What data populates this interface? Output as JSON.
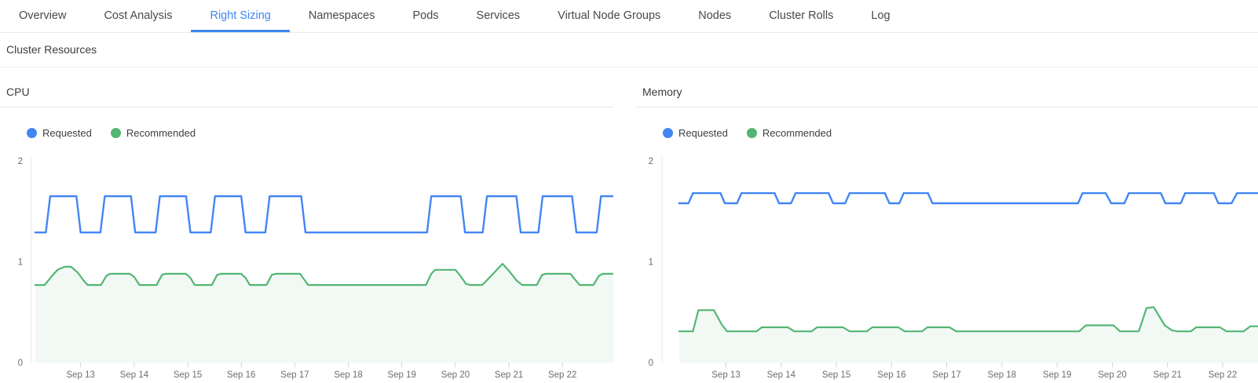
{
  "tabs": [
    {
      "label": "Overview",
      "active": false
    },
    {
      "label": "Cost Analysis",
      "active": false
    },
    {
      "label": "Right Sizing",
      "active": true
    },
    {
      "label": "Namespaces",
      "active": false
    },
    {
      "label": "Pods",
      "active": false
    },
    {
      "label": "Services",
      "active": false
    },
    {
      "label": "Virtual Node Groups",
      "active": false
    },
    {
      "label": "Nodes",
      "active": false
    },
    {
      "label": "Cluster Rolls",
      "active": false
    },
    {
      "label": "Log",
      "active": false
    }
  ],
  "colors": {
    "accent_blue": "#3b87f2",
    "requested_line": "#4286f5",
    "recommended_line": "#53b674",
    "recommended_fill": "rgba(83,182,116,0.08)",
    "axis_line": "#e4e4e4",
    "tick_mark": "#cfcfcf"
  },
  "section": {
    "title": "Cluster Resources"
  },
  "chart_data": [
    {
      "type": "line",
      "title": "CPU",
      "legend_position": "top-left",
      "grid": false,
      "ylim": [
        0,
        2
      ],
      "yticks": [
        0,
        1,
        2
      ],
      "x_domain": [
        12.08,
        22.95
      ],
      "x_ticks": [
        {
          "day": 13,
          "label": "Sep 13"
        },
        {
          "day": 14,
          "label": "Sep 14"
        },
        {
          "day": 15,
          "label": "Sep 15"
        },
        {
          "day": 16,
          "label": "Sep 16"
        },
        {
          "day": 17,
          "label": "Sep 17"
        },
        {
          "day": 18,
          "label": "Sep 18"
        },
        {
          "day": 19,
          "label": "Sep 19"
        },
        {
          "day": 20,
          "label": "Sep 20"
        },
        {
          "day": 21,
          "label": "Sep 21"
        },
        {
          "day": 22,
          "label": "Sep 22"
        }
      ],
      "series": [
        {
          "name": "Requested",
          "color": "#4286f5",
          "fill": null,
          "points": [
            [
              12.15,
              1.29
            ],
            [
              12.35,
              1.29
            ],
            [
              12.43,
              1.65
            ],
            [
              12.92,
              1.65
            ],
            [
              13.0,
              1.29
            ],
            [
              13.37,
              1.29
            ],
            [
              13.45,
              1.65
            ],
            [
              13.94,
              1.65
            ],
            [
              14.02,
              1.29
            ],
            [
              14.4,
              1.29
            ],
            [
              14.48,
              1.65
            ],
            [
              14.97,
              1.65
            ],
            [
              15.05,
              1.29
            ],
            [
              15.43,
              1.29
            ],
            [
              15.51,
              1.65
            ],
            [
              16.0,
              1.65
            ],
            [
              16.08,
              1.29
            ],
            [
              16.45,
              1.29
            ],
            [
              16.53,
              1.65
            ],
            [
              17.12,
              1.65
            ],
            [
              17.2,
              1.29
            ],
            [
              19.47,
              1.29
            ],
            [
              19.55,
              1.65
            ],
            [
              20.1,
              1.65
            ],
            [
              20.18,
              1.29
            ],
            [
              20.51,
              1.29
            ],
            [
              20.59,
              1.65
            ],
            [
              21.14,
              1.65
            ],
            [
              21.22,
              1.29
            ],
            [
              21.55,
              1.29
            ],
            [
              21.63,
              1.65
            ],
            [
              22.18,
              1.65
            ],
            [
              22.26,
              1.29
            ],
            [
              22.64,
              1.29
            ],
            [
              22.72,
              1.65
            ],
            [
              22.95,
              1.65
            ]
          ]
        },
        {
          "name": "Recommended",
          "color": "#53b674",
          "fill": "rgba(83,182,116,0.08)",
          "points": [
            [
              12.15,
              0.77
            ],
            [
              12.33,
              0.77
            ],
            [
              12.45,
              0.85
            ],
            [
              12.57,
              0.92
            ],
            [
              12.7,
              0.95
            ],
            [
              12.82,
              0.95
            ],
            [
              12.95,
              0.89
            ],
            [
              13.06,
              0.81
            ],
            [
              13.13,
              0.77
            ],
            [
              13.38,
              0.77
            ],
            [
              13.48,
              0.86
            ],
            [
              13.55,
              0.88
            ],
            [
              13.92,
              0.88
            ],
            [
              14.0,
              0.85
            ],
            [
              14.1,
              0.77
            ],
            [
              14.42,
              0.77
            ],
            [
              14.52,
              0.87
            ],
            [
              14.58,
              0.88
            ],
            [
              14.97,
              0.88
            ],
            [
              15.05,
              0.84
            ],
            [
              15.13,
              0.77
            ],
            [
              15.45,
              0.77
            ],
            [
              15.55,
              0.87
            ],
            [
              15.62,
              0.88
            ],
            [
              16.0,
              0.88
            ],
            [
              16.08,
              0.84
            ],
            [
              16.16,
              0.77
            ],
            [
              16.47,
              0.77
            ],
            [
              16.57,
              0.87
            ],
            [
              16.64,
              0.88
            ],
            [
              17.1,
              0.88
            ],
            [
              17.18,
              0.82
            ],
            [
              17.25,
              0.77
            ],
            [
              19.45,
              0.77
            ],
            [
              19.55,
              0.88
            ],
            [
              19.62,
              0.92
            ],
            [
              20.0,
              0.92
            ],
            [
              20.08,
              0.87
            ],
            [
              20.2,
              0.78
            ],
            [
              20.28,
              0.77
            ],
            [
              20.5,
              0.77
            ],
            [
              20.65,
              0.85
            ],
            [
              20.88,
              0.98
            ],
            [
              21.0,
              0.91
            ],
            [
              21.15,
              0.81
            ],
            [
              21.25,
              0.77
            ],
            [
              21.52,
              0.77
            ],
            [
              21.62,
              0.87
            ],
            [
              21.68,
              0.88
            ],
            [
              22.15,
              0.88
            ],
            [
              22.24,
              0.82
            ],
            [
              22.32,
              0.77
            ],
            [
              22.58,
              0.77
            ],
            [
              22.68,
              0.86
            ],
            [
              22.75,
              0.88
            ],
            [
              22.95,
              0.88
            ]
          ]
        }
      ]
    },
    {
      "type": "line",
      "title": "Memory",
      "legend_position": "top-left",
      "grid": false,
      "ylim": [
        0,
        2
      ],
      "yticks": [
        0,
        1,
        2
      ],
      "x_domain": [
        11.84,
        22.64
      ],
      "x_ticks": [
        {
          "day": 13,
          "label": "Sep 13"
        },
        {
          "day": 14,
          "label": "Sep 14"
        },
        {
          "day": 15,
          "label": "Sep 15"
        },
        {
          "day": 16,
          "label": "Sep 16"
        },
        {
          "day": 17,
          "label": "Sep 17"
        },
        {
          "day": 18,
          "label": "Sep 18"
        },
        {
          "day": 19,
          "label": "Sep 19"
        },
        {
          "day": 20,
          "label": "Sep 20"
        },
        {
          "day": 21,
          "label": "Sep 21"
        },
        {
          "day": 22,
          "label": "Sep 22"
        }
      ],
      "series": [
        {
          "name": "Requested",
          "color": "#4286f5",
          "fill": null,
          "points": [
            [
              12.15,
              1.58
            ],
            [
              12.32,
              1.58
            ],
            [
              12.4,
              1.68
            ],
            [
              12.9,
              1.68
            ],
            [
              12.98,
              1.58
            ],
            [
              13.2,
              1.58
            ],
            [
              13.28,
              1.68
            ],
            [
              13.88,
              1.68
            ],
            [
              13.96,
              1.58
            ],
            [
              14.18,
              1.58
            ],
            [
              14.26,
              1.68
            ],
            [
              14.86,
              1.68
            ],
            [
              14.94,
              1.58
            ],
            [
              15.16,
              1.58
            ],
            [
              15.24,
              1.68
            ],
            [
              15.88,
              1.68
            ],
            [
              15.96,
              1.58
            ],
            [
              16.14,
              1.58
            ],
            [
              16.22,
              1.68
            ],
            [
              16.66,
              1.68
            ],
            [
              16.74,
              1.58
            ],
            [
              19.38,
              1.58
            ],
            [
              19.46,
              1.68
            ],
            [
              19.88,
              1.68
            ],
            [
              19.98,
              1.58
            ],
            [
              20.22,
              1.58
            ],
            [
              20.3,
              1.68
            ],
            [
              20.88,
              1.68
            ],
            [
              20.96,
              1.58
            ],
            [
              21.24,
              1.58
            ],
            [
              21.32,
              1.68
            ],
            [
              21.84,
              1.68
            ],
            [
              21.92,
              1.58
            ],
            [
              22.16,
              1.58
            ],
            [
              22.26,
              1.68
            ],
            [
              22.64,
              1.68
            ]
          ]
        },
        {
          "name": "Recommended",
          "color": "#53b674",
          "fill": "rgba(83,182,116,0.08)",
          "points": [
            [
              12.15,
              0.31
            ],
            [
              12.4,
              0.31
            ],
            [
              12.5,
              0.52
            ],
            [
              12.78,
              0.52
            ],
            [
              12.92,
              0.38
            ],
            [
              13.02,
              0.31
            ],
            [
              13.55,
              0.31
            ],
            [
              13.65,
              0.35
            ],
            [
              14.12,
              0.35
            ],
            [
              14.24,
              0.31
            ],
            [
              14.55,
              0.31
            ],
            [
              14.65,
              0.35
            ],
            [
              15.12,
              0.35
            ],
            [
              15.24,
              0.31
            ],
            [
              15.55,
              0.31
            ],
            [
              15.65,
              0.35
            ],
            [
              16.12,
              0.35
            ],
            [
              16.24,
              0.31
            ],
            [
              16.55,
              0.31
            ],
            [
              16.65,
              0.35
            ],
            [
              17.05,
              0.35
            ],
            [
              17.17,
              0.31
            ],
            [
              19.4,
              0.31
            ],
            [
              19.52,
              0.37
            ],
            [
              20.02,
              0.37
            ],
            [
              20.14,
              0.31
            ],
            [
              20.48,
              0.31
            ],
            [
              20.62,
              0.54
            ],
            [
              20.75,
              0.55
            ],
            [
              20.95,
              0.37
            ],
            [
              21.08,
              0.32
            ],
            [
              21.18,
              0.31
            ],
            [
              21.42,
              0.31
            ],
            [
              21.52,
              0.35
            ],
            [
              21.95,
              0.35
            ],
            [
              22.07,
              0.31
            ],
            [
              22.38,
              0.31
            ],
            [
              22.5,
              0.36
            ],
            [
              22.64,
              0.36
            ]
          ]
        }
      ]
    }
  ]
}
